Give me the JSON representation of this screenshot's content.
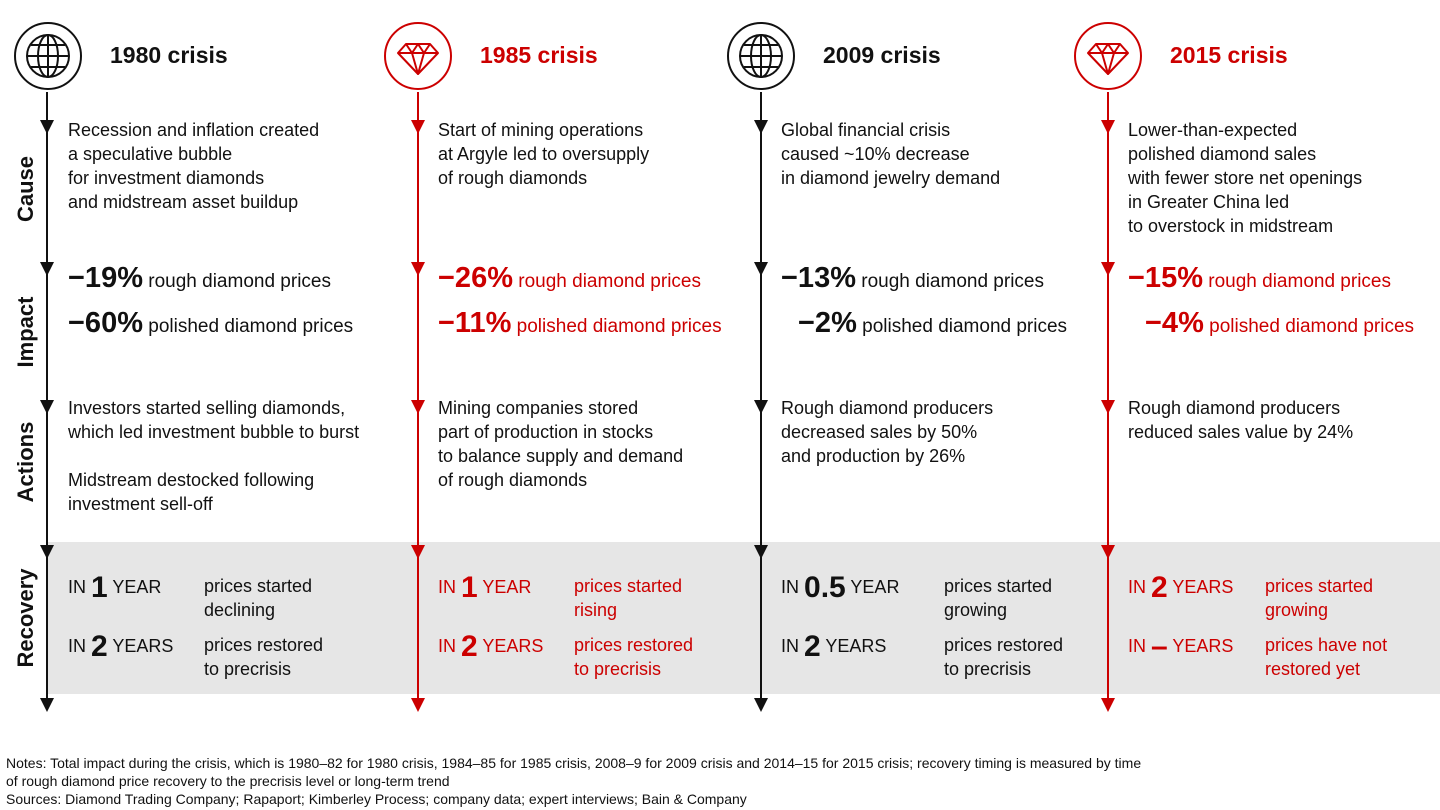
{
  "side_labels": {
    "cause": "Cause",
    "impact": "Impact",
    "actions": "Actions",
    "recovery": "Recovery"
  },
  "colors": {
    "accent_red": "#cc0000",
    "black": "#111111",
    "band_gray": "#e6e6e6"
  },
  "columns": [
    {
      "icon": "globe-icon",
      "title": "1980 crisis",
      "cause": "Recession and inflation created\na speculative bubble\nfor investment diamonds\nand midstream asset buildup",
      "impact_rough_pct": "−19%",
      "impact_rough_label": "rough diamond prices",
      "impact_polished_pct": "−60%",
      "impact_polished_label": "polished diamond prices",
      "actions": "Investors started selling diamonds,\nwhich led investment bubble to burst\n\nMidstream destocked following\ninvestment sell-off",
      "rec1_in": "IN",
      "rec1_num": "1",
      "rec1_unit": "YEAR",
      "rec1_desc": "prices started\ndeclining",
      "rec2_in": "IN",
      "rec2_num": "2",
      "rec2_unit": "YEARS",
      "rec2_desc": "prices restored\nto precrisis"
    },
    {
      "icon": "diamond-icon",
      "title": "1985 crisis",
      "cause": "Start of mining operations\nat Argyle led to oversupply\nof rough diamonds",
      "impact_rough_pct": "−26%",
      "impact_rough_label": "rough diamond prices",
      "impact_polished_pct": "−11%",
      "impact_polished_label": "polished diamond prices",
      "actions": "Mining companies stored\npart of production in stocks\nto balance supply and demand\nof rough diamonds",
      "rec1_in": "IN",
      "rec1_num": "1",
      "rec1_unit": "YEAR",
      "rec1_desc": "prices started\nrising",
      "rec2_in": "IN",
      "rec2_num": "2",
      "rec2_unit": "YEARS",
      "rec2_desc": "prices restored\nto precrisis"
    },
    {
      "icon": "globe-icon",
      "title": "2009 crisis",
      "cause": "Global financial crisis\ncaused ~10% decrease\nin diamond jewelry demand",
      "impact_rough_pct": "−13%",
      "impact_rough_label": "rough diamond prices",
      "impact_polished_pct": "−2%",
      "impact_polished_label": "polished diamond prices",
      "actions": "Rough diamond producers\ndecreased sales by 50%\nand production by 26%",
      "rec1_in": "IN",
      "rec1_num": "0.5",
      "rec1_unit": "YEAR",
      "rec1_desc": "prices started\ngrowing",
      "rec2_in": "IN",
      "rec2_num": "2",
      "rec2_unit": "YEARS",
      "rec2_desc": "prices restored\nto precrisis"
    },
    {
      "icon": "diamond-icon",
      "title": "2015 crisis",
      "cause": "Lower-than-expected\npolished diamond sales\nwith fewer store net openings\nin Greater China led\nto overstock in midstream",
      "impact_rough_pct": "−15%",
      "impact_rough_label": "rough diamond prices",
      "impact_polished_pct": "−4%",
      "impact_polished_label": "polished diamond prices",
      "actions": "Rough diamond producers\nreduced sales value by 24%",
      "rec1_in": "IN",
      "rec1_num": "2",
      "rec1_unit": "YEARS",
      "rec1_desc": "prices started\ngrowing",
      "rec2_in": "IN",
      "rec2_num": "–",
      "rec2_unit": "YEARS",
      "rec2_desc": "prices have not\nrestored yet"
    }
  ],
  "notes": "Notes: Total impact during the crisis, which is 1980–82 for 1980 crisis, 1984–85 for 1985 crisis, 2008–9 for 2009 crisis and 2014–15 for 2015 crisis; recovery timing is measured by time\nof rough diamond price recovery to the precrisis level or long-term trend\nSources: Diamond Trading Company; Rapaport; Kimberley Process; company data; expert interviews; Bain & Company"
}
